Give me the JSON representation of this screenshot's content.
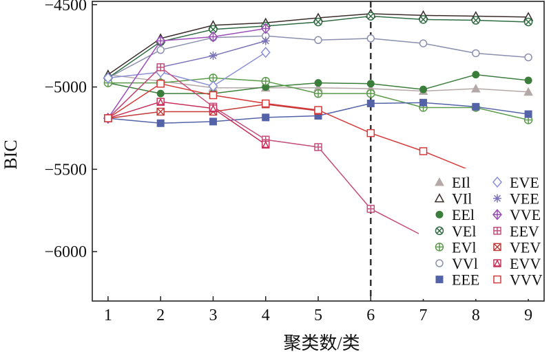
{
  "chart_data": {
    "type": "line",
    "xlabel": "聚类数/类",
    "ylabel": "BIC",
    "x": [
      1,
      2,
      3,
      4,
      5,
      6,
      7,
      8,
      9
    ],
    "xlim": [
      0.7,
      9.3
    ],
    "ylim": [
      -6300,
      -4480
    ],
    "xticks": [
      1,
      2,
      3,
      4,
      5,
      6,
      7,
      8,
      9
    ],
    "yticks": [
      -4500,
      -5000,
      -5500,
      -6000
    ],
    "ytick_labels": [
      "−4500",
      "−5000",
      "−5500",
      "−6000"
    ],
    "vline_x": 6,
    "grid": false,
    "legend_position": "bottom-right",
    "series": [
      {
        "name": "EII",
        "label": "EIl",
        "color": "#b5a8a8",
        "marker": "triangle-filled",
        "values": [
          -4925,
          -4965,
          -5005,
          -5005,
          -5005,
          -5010,
          -5025,
          -5010,
          -5030
        ]
      },
      {
        "name": "VII",
        "label": "VIl",
        "color": "#3a2b2b",
        "marker": "triangle-open",
        "values": [
          -4925,
          -4705,
          -4625,
          -4610,
          -4580,
          -4555,
          -4565,
          -4570,
          -4575
        ]
      },
      {
        "name": "EEI",
        "label": "EEl",
        "color": "#3b7d3a",
        "marker": "circle-filled",
        "values": [
          -4975,
          -5040,
          -5040,
          -5000,
          -4975,
          -4980,
          -5015,
          -4925,
          -4960
        ]
      },
      {
        "name": "VEI",
        "label": "VEl",
        "color": "#2e6b40",
        "marker": "circle-x",
        "values": [
          -4945,
          -4725,
          -4650,
          -4630,
          -4605,
          -4570,
          -4590,
          -4595,
          -4605
        ]
      },
      {
        "name": "EVI",
        "label": "EVl",
        "color": "#5a9a4a",
        "marker": "circle-plus",
        "values": [
          -4975,
          -4975,
          -4945,
          -4965,
          -5040,
          -5040,
          -5125,
          -5125,
          -5200
        ]
      },
      {
        "name": "VVI",
        "label": "VVl",
        "color": "#8a8fae",
        "marker": "circle-open",
        "values": [
          -4945,
          -4775,
          -4700,
          -4690,
          -4715,
          -4705,
          -4735,
          -4795,
          -4820
        ]
      },
      {
        "name": "EEE",
        "label": "EEE",
        "color": "#5462a8",
        "marker": "square-filled",
        "values": [
          -5190,
          -5220,
          -5210,
          -5185,
          -5175,
          -5100,
          -5095,
          -5120,
          -5165
        ]
      },
      {
        "name": "EVE",
        "label": "EVE",
        "color": "#8a8fd6",
        "marker": "diamond-open",
        "values": [
          -4945,
          -4910,
          -4995,
          -4790,
          null,
          null,
          null,
          null,
          null
        ]
      },
      {
        "name": "VEE",
        "label": "VEE",
        "color": "#7a72b8",
        "marker": "asterisk",
        "values": [
          -5190,
          -4880,
          -4810,
          -4720,
          null,
          null,
          null,
          null,
          null
        ]
      },
      {
        "name": "VVE",
        "label": "VVE",
        "color": "#9a4db8",
        "marker": "diamond-plus",
        "values": [
          -5190,
          -4720,
          -4695,
          -4645,
          null,
          null,
          null,
          null,
          null
        ]
      },
      {
        "name": "EEV",
        "label": "EEV",
        "color": "#c44d7a",
        "marker": "square-plus",
        "values": [
          -5190,
          -4880,
          -5120,
          -5320,
          -5365,
          -5740,
          -5905,
          null,
          null
        ]
      },
      {
        "name": "VEV",
        "label": "VEV",
        "color": "#c23838",
        "marker": "square-x",
        "values": [
          -5190,
          -5150,
          -5150,
          -5105,
          -5145,
          null,
          null,
          null,
          null
        ]
      },
      {
        "name": "EVV",
        "label": "EVV",
        "color": "#c7305a",
        "marker": "square-tri",
        "values": [
          -5190,
          -5090,
          -5130,
          -5350,
          null,
          null,
          null,
          null,
          null
        ]
      },
      {
        "name": "VVV",
        "label": "VVV",
        "color": "#d63a3a",
        "marker": "square-open",
        "values": [
          -5190,
          -4980,
          -5050,
          -5100,
          -5140,
          -5280,
          -5390,
          -5520,
          null
        ]
      }
    ]
  }
}
